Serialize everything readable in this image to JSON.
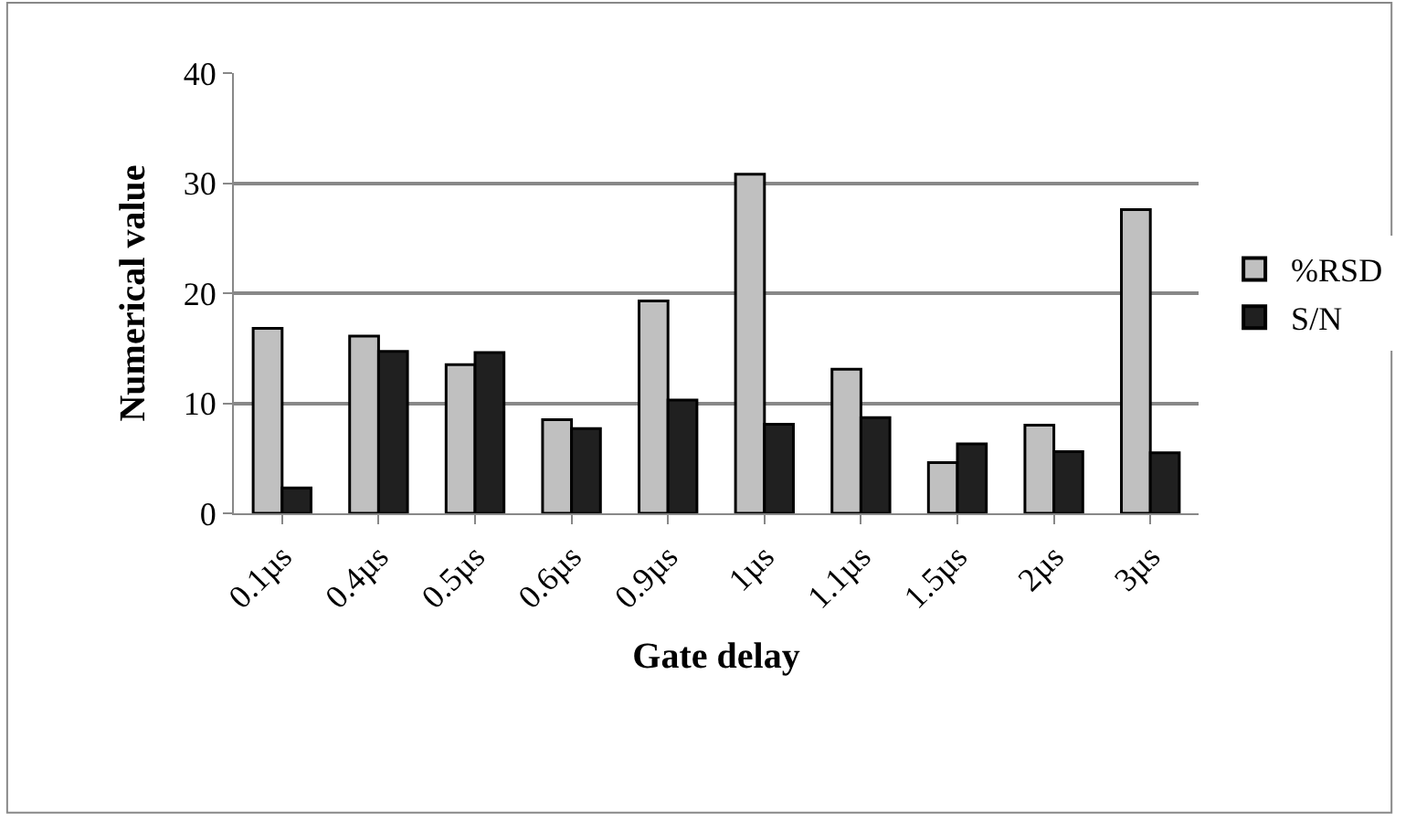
{
  "chart_data": {
    "type": "bar",
    "xlabel": "Gate delay",
    "ylabel": "Numerical value",
    "categories": [
      "0.1µs",
      "0.4µs",
      "0.5µs",
      "0.6µs",
      "0.9µs",
      "1µs",
      "1.1µs",
      "1.5µs",
      "2µs",
      "3µs"
    ],
    "series": [
      {
        "name": "%RSD",
        "color": "#c0c0c0",
        "values": [
          16.8,
          16.1,
          13.5,
          8.5,
          19.3,
          30.8,
          13.1,
          4.6,
          8.0,
          27.6
        ]
      },
      {
        "name": "S/N",
        "color": "#202020",
        "values": [
          2.3,
          14.7,
          14.6,
          7.7,
          10.3,
          8.1,
          8.7,
          6.3,
          5.6,
          5.5
        ]
      }
    ],
    "ylim": [
      0,
      40
    ],
    "yticks": [
      0,
      10,
      20,
      30,
      40
    ],
    "grid": "y",
    "legend": "right"
  }
}
